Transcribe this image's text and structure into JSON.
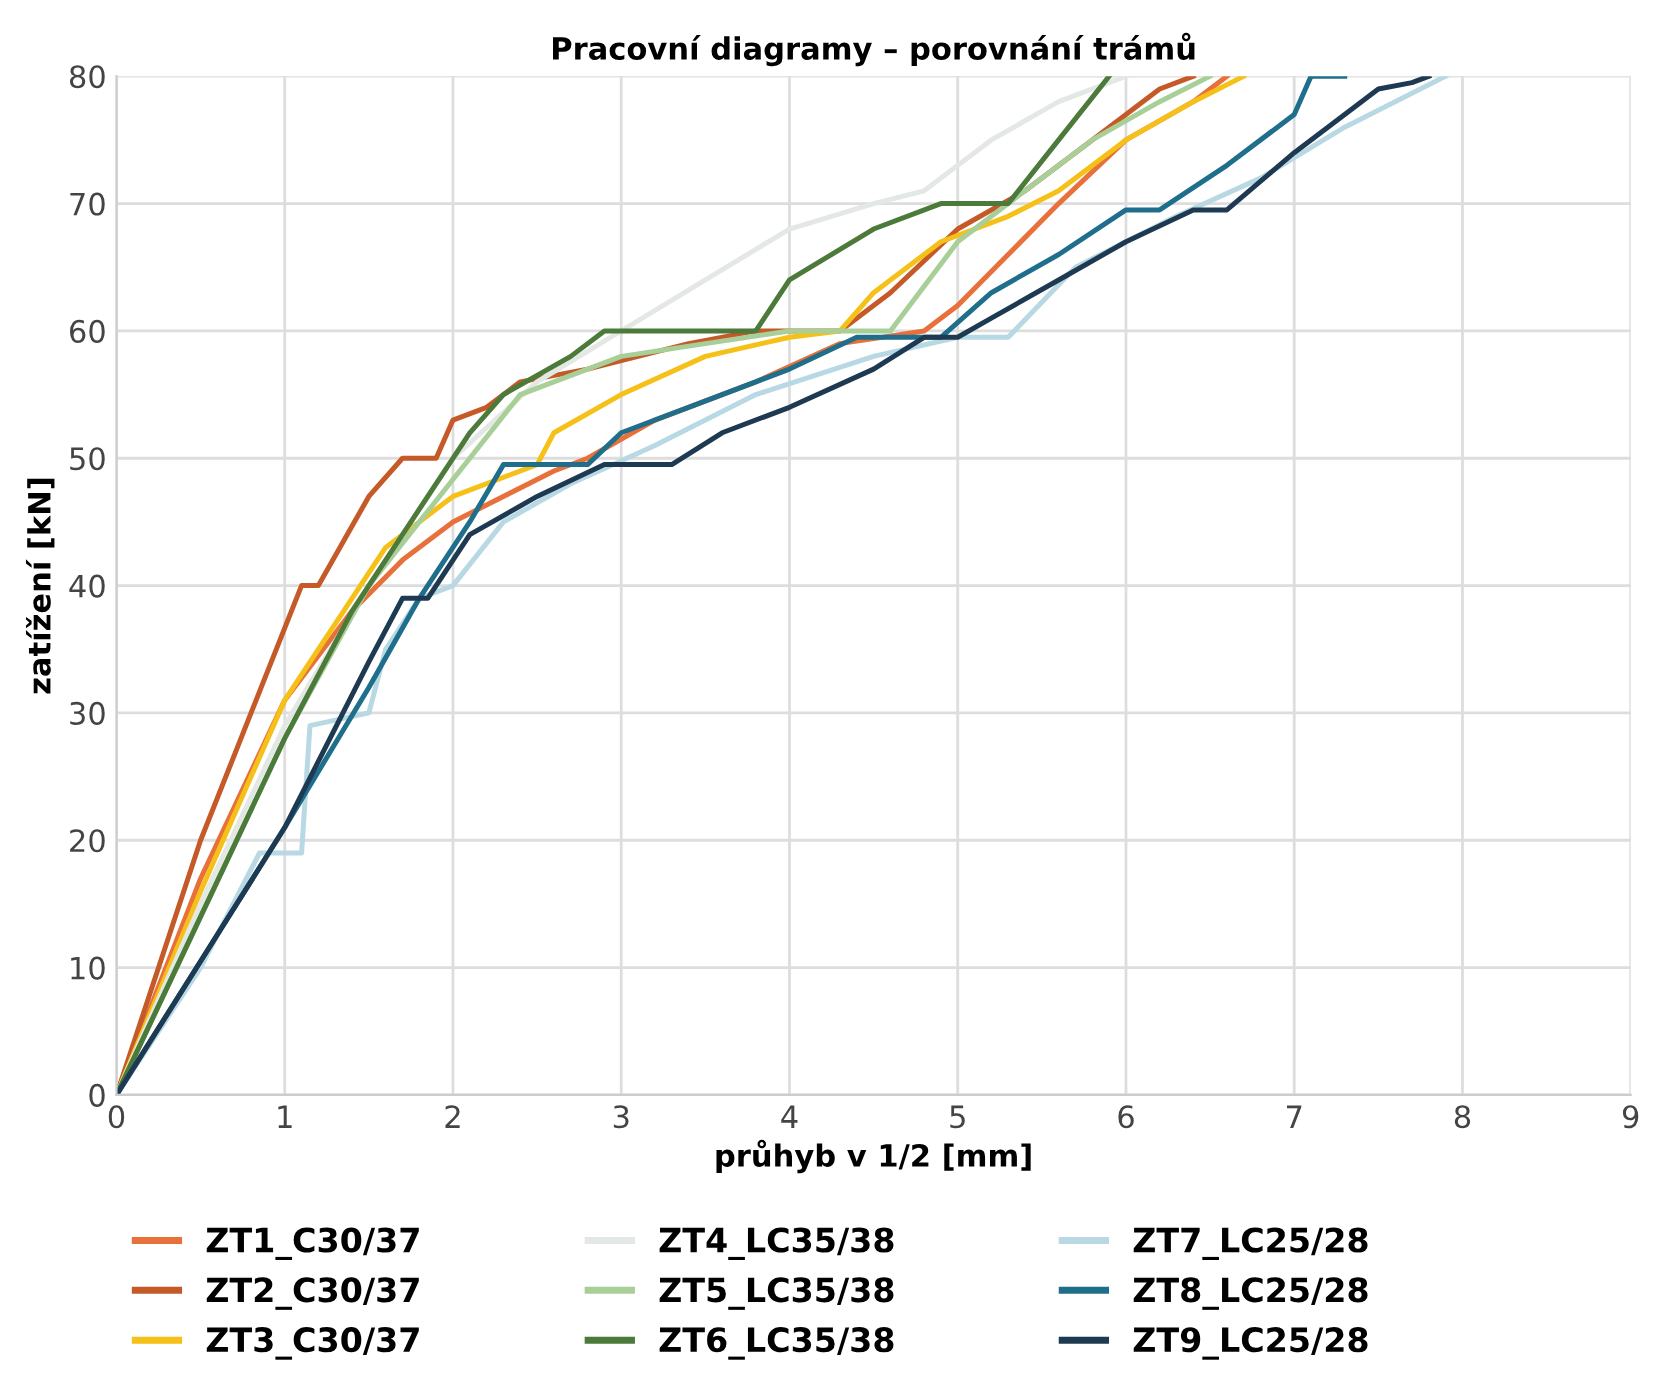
{
  "chart_data": {
    "type": "line",
    "title": "Pracovní diagramy – porovnání trámů",
    "xlabel": "průhyb v 1/2 [mm]",
    "ylabel": "zatížení [kN]",
    "xlim": [
      0,
      9
    ],
    "xticks": [
      0,
      1,
      2,
      3,
      4,
      5,
      6,
      7,
      8,
      9
    ],
    "ylim": [
      0,
      80
    ],
    "yticks": [
      0,
      10,
      20,
      30,
      40,
      50,
      60,
      70,
      80
    ],
    "grid": true,
    "legend": "bottom",
    "marker": "none",
    "line_style": "solid",
    "series": [
      {
        "name": "ZT1_C30/37",
        "color": "#e8703a",
        "x": [
          0,
          0.5,
          1.0,
          1.4,
          1.7,
          2.0,
          2.6,
          2.8,
          3.2,
          3.8,
          4.3,
          4.8,
          5.0,
          5.3,
          5.6,
          6.0,
          6.4,
          6.6
        ],
        "values": [
          0,
          17,
          31,
          38,
          42,
          45,
          49,
          50,
          53,
          56,
          59,
          60,
          62,
          66,
          70,
          75,
          78,
          80
        ]
      },
      {
        "name": "ZT2_C30/37",
        "color": "#c55a28",
        "x": [
          0,
          0.5,
          0.8,
          1.1,
          1.2,
          1.5,
          1.7,
          1.9,
          2.0,
          2.2,
          2.4,
          2.8,
          3.4,
          3.8,
          4.3,
          4.6,
          5.0,
          5.4,
          5.8,
          6.2,
          6.4
        ],
        "values": [
          0,
          20,
          30,
          40,
          40,
          47,
          50,
          50,
          53,
          54,
          56,
          57,
          59,
          60,
          60,
          63,
          68,
          71,
          75,
          79,
          80
        ]
      },
      {
        "name": "ZT3_C30/37",
        "color": "#f5c118",
        "x": [
          0,
          0.5,
          1.0,
          1.3,
          1.6,
          2.0,
          2.5,
          2.6,
          3.0,
          3.5,
          4.0,
          4.3,
          4.5,
          4.9,
          5.3,
          5.6,
          6.0,
          6.4,
          6.7
        ],
        "values": [
          0,
          16,
          31,
          37,
          43,
          47,
          49.5,
          52,
          55,
          58,
          59.5,
          60,
          63,
          67,
          69,
          71,
          75,
          78,
          80
        ]
      },
      {
        "name": "ZT4_LC35/38",
        "color": "#e4e8e4",
        "x": [
          0,
          0.5,
          1.0,
          1.5,
          2.0,
          2.5,
          3.0,
          3.5,
          4.0,
          4.5,
          4.8,
          5.2,
          5.6,
          6.0
        ],
        "values": [
          0,
          15,
          29,
          40,
          50,
          56,
          60,
          64,
          68,
          70,
          71,
          75,
          78,
          80
        ]
      },
      {
        "name": "ZT5_LC35/38",
        "color": "#a8cf98",
        "x": [
          0,
          0.5,
          1.0,
          1.5,
          1.8,
          2.1,
          2.4,
          3.0,
          3.5,
          4.0,
          4.6,
          5.0,
          5.4,
          5.8,
          6.2,
          6.5
        ],
        "values": [
          0,
          14,
          28,
          40,
          45,
          50,
          55,
          58,
          59,
          60,
          60,
          67,
          71,
          75,
          78,
          80
        ]
      },
      {
        "name": "ZT6_LC35/38",
        "color": "#4b7a3a",
        "x": [
          0,
          0.5,
          1.0,
          1.4,
          1.8,
          2.1,
          2.3,
          2.7,
          2.9,
          3.5,
          3.8,
          4.0,
          4.5,
          4.9,
          5.3,
          5.6,
          5.9
        ],
        "values": [
          0,
          14,
          28,
          38,
          46,
          52,
          55,
          58,
          60,
          60,
          60,
          64,
          68,
          70,
          70,
          75,
          80
        ]
      },
      {
        "name": "ZT7_LC25/28",
        "color": "#b8d8e4",
        "x": [
          0,
          0.5,
          0.85,
          1.1,
          1.15,
          1.5,
          1.6,
          1.8,
          2.0,
          2.3,
          2.7,
          3.2,
          3.8,
          4.5,
          5.0,
          5.3,
          5.7,
          6.3,
          6.8,
          7.3,
          7.9
        ],
        "values": [
          0,
          10,
          19,
          19,
          29,
          30,
          35,
          39,
          40,
          45,
          48,
          51,
          55,
          58,
          59.5,
          59.5,
          65,
          69,
          72,
          76,
          80
        ]
      },
      {
        "name": "ZT8_LC25/28",
        "color": "#1f6e8c",
        "x": [
          0,
          0.5,
          1.0,
          1.5,
          1.8,
          2.1,
          2.3,
          2.8,
          3.0,
          3.4,
          4.0,
          4.4,
          4.9,
          5.2,
          5.6,
          6.0,
          6.2,
          6.6,
          7.0,
          7.1,
          7.3
        ],
        "values": [
          0,
          10.5,
          21,
          32,
          39,
          45,
          49.5,
          49.5,
          52,
          54,
          57,
          59.5,
          59.5,
          63,
          66,
          69.5,
          69.5,
          73,
          77,
          80,
          80
        ]
      },
      {
        "name": "ZT9_LC25/28",
        "color": "#1e3a52",
        "x": [
          0,
          0.5,
          1.0,
          1.5,
          1.7,
          1.85,
          2.1,
          2.5,
          2.9,
          3.3,
          3.6,
          4.0,
          4.5,
          4.8,
          5.0,
          5.2,
          5.6,
          6.0,
          6.4,
          6.6,
          7.0,
          7.5,
          7.7,
          7.8
        ],
        "values": [
          0,
          10.5,
          21,
          34,
          39,
          39,
          44,
          47,
          49.5,
          49.5,
          52,
          54,
          57,
          59.5,
          59.5,
          61,
          64,
          67,
          69.5,
          69.5,
          74,
          79,
          79.5,
          80
        ]
      }
    ]
  }
}
